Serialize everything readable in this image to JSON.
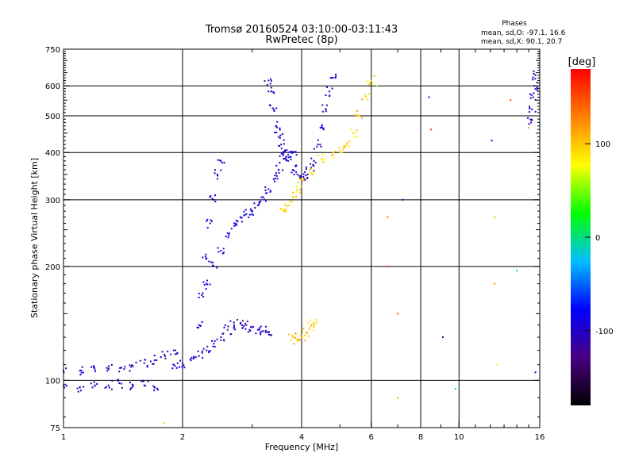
{
  "chart_data": {
    "type": "scatter",
    "title": "Tromsø 20160524 03:10:00-03:11:43",
    "subtitle": "RwPretec (8p)",
    "phase_stats": {
      "header": "Phases",
      "line1": "mean, sd,O: -97.1, 16.6",
      "line2": "mean, sd,X:  90.1, 20.7"
    },
    "xlabel": "Frequency [MHz]",
    "ylabel": "Stationary phase Virtual Height [km]",
    "x_scale": "log",
    "y_scale": "log",
    "xlim": [
      1,
      16
    ],
    "ylim": [
      75,
      750
    ],
    "x_ticks": [
      1,
      2,
      4,
      6,
      8,
      10,
      16
    ],
    "x_tick_labels": [
      "1",
      "2",
      "4",
      "6",
      "8",
      "10",
      "16"
    ],
    "y_ticks": [
      75,
      100,
      200,
      300,
      400,
      500,
      600,
      750
    ],
    "y_tick_labels": [
      "75",
      "100",
      "200",
      "300",
      "400",
      "500",
      "600",
      "750"
    ],
    "x_gridlines": [
      2,
      4,
      6,
      8,
      10
    ],
    "y_gridlines": [
      100,
      200,
      300,
      400,
      500,
      600
    ],
    "grid": true,
    "colorbar": {
      "label": "[deg]",
      "range": [
        -180,
        180
      ],
      "ticks": [
        100,
        0,
        -100
      ],
      "tick_labels": [
        "100",
        "0",
        "-100"
      ],
      "colors": [
        "#000000",
        "#4b0082",
        "#0000ff",
        "#00bfff",
        "#00ff00",
        "#ffff00",
        "#ff8000",
        "#ff0000"
      ]
    },
    "traces": [
      {
        "name": "",
        "phase": -100,
        "points": [
          [
            1.0,
            106
          ],
          [
            1.1,
            106
          ],
          [
            1.2,
            107
          ],
          [
            1.3,
            107
          ],
          [
            1.4,
            108
          ],
          [
            1.5,
            109
          ],
          [
            1.6,
            111
          ],
          [
            1.7,
            113
          ],
          [
            1.8,
            117
          ],
          [
            1.9,
            120
          ]
        ]
      },
      {
        "name": "",
        "phase": -105,
        "points": [
          [
            1.0,
            97
          ],
          [
            1.1,
            96
          ],
          [
            1.2,
            97
          ],
          [
            1.3,
            97
          ],
          [
            1.4,
            98
          ],
          [
            1.5,
            97
          ],
          [
            1.6,
            97
          ],
          [
            1.7,
            96
          ]
        ]
      },
      {
        "name": "",
        "phase": -100,
        "points": [
          [
            1.9,
            110
          ],
          [
            2.0,
            111
          ],
          [
            2.1,
            113
          ],
          [
            2.2,
            116
          ],
          [
            2.3,
            120
          ],
          [
            2.4,
            125
          ],
          [
            2.5,
            130
          ],
          [
            2.6,
            136
          ],
          [
            2.7,
            140
          ],
          [
            2.8,
            141
          ],
          [
            2.9,
            140
          ],
          [
            3.0,
            138
          ],
          [
            3.1,
            136
          ],
          [
            3.2,
            135
          ],
          [
            3.3,
            134
          ]
        ]
      },
      {
        "name": "",
        "phase": -90,
        "points": [
          [
            2.3,
            180
          ],
          [
            2.4,
            200
          ],
          [
            2.5,
            220
          ],
          [
            2.6,
            245
          ],
          [
            2.7,
            260
          ],
          [
            2.8,
            270
          ],
          [
            2.9,
            275
          ],
          [
            3.0,
            280
          ],
          [
            3.1,
            290
          ],
          [
            3.2,
            305
          ],
          [
            3.3,
            320
          ],
          [
            3.4,
            340
          ],
          [
            3.5,
            360
          ],
          [
            3.6,
            385
          ],
          [
            3.7,
            395
          ],
          [
            3.8,
            400
          ]
        ]
      },
      {
        "name": "",
        "phase": -95,
        "points": [
          [
            2.2,
            140
          ],
          [
            2.25,
            170
          ],
          [
            2.3,
            210
          ],
          [
            2.35,
            260
          ],
          [
            2.4,
            300
          ],
          [
            2.45,
            350
          ],
          [
            2.5,
            380
          ]
        ]
      },
      {
        "name": "",
        "phase": -100,
        "points": [
          [
            3.3,
            620
          ],
          [
            3.35,
            580
          ],
          [
            3.4,
            520
          ],
          [
            3.45,
            470
          ],
          [
            3.5,
            440
          ],
          [
            3.55,
            420
          ],
          [
            3.6,
            400
          ],
          [
            3.7,
            380
          ],
          [
            3.8,
            360
          ],
          [
            3.9,
            350
          ],
          [
            4.0,
            345
          ],
          [
            4.1,
            348
          ],
          [
            4.2,
            360
          ],
          [
            4.3,
            380
          ],
          [
            4.4,
            420
          ],
          [
            4.5,
            470
          ],
          [
            4.6,
            520
          ],
          [
            4.7,
            580
          ],
          [
            4.8,
            630
          ]
        ]
      },
      {
        "name": "",
        "phase": 95,
        "points": [
          [
            3.6,
            280
          ],
          [
            3.7,
            290
          ],
          [
            3.8,
            305
          ],
          [
            3.9,
            320
          ],
          [
            4.0,
            340
          ],
          [
            4.2,
            360
          ],
          [
            4.5,
            385
          ],
          [
            4.8,
            395
          ],
          [
            5.0,
            405
          ],
          [
            5.2,
            420
          ],
          [
            5.4,
            450
          ],
          [
            5.6,
            500
          ],
          [
            5.8,
            560
          ],
          [
            6.0,
            620
          ]
        ]
      },
      {
        "name": "",
        "phase": 100,
        "points": [
          [
            3.8,
            130
          ],
          [
            3.9,
            128
          ],
          [
            4.0,
            130
          ],
          [
            4.1,
            134
          ],
          [
            4.2,
            138
          ],
          [
            4.3,
            142
          ]
        ]
      },
      {
        "name": "",
        "phase": -100,
        "points": [
          [
            15.2,
            480
          ],
          [
            15.3,
            520
          ],
          [
            15.4,
            560
          ],
          [
            15.5,
            600
          ],
          [
            15.6,
            640
          ]
        ]
      }
    ],
    "isolated_points": [
      {
        "x": 1.8,
        "y": 77,
        "phase": 100
      },
      {
        "x": 6.2,
        "y": 600,
        "phase": 60
      },
      {
        "x": 6.6,
        "y": 270,
        "phase": 130
      },
      {
        "x": 6.6,
        "y": 200,
        "phase": 160
      },
      {
        "x": 7.0,
        "y": 150,
        "phase": 150
      },
      {
        "x": 7.0,
        "y": 90,
        "phase": 110
      },
      {
        "x": 7.2,
        "y": 300,
        "phase": -110
      },
      {
        "x": 8.4,
        "y": 560,
        "phase": -110
      },
      {
        "x": 8.5,
        "y": 460,
        "phase": 170
      },
      {
        "x": 9.1,
        "y": 130,
        "phase": -120
      },
      {
        "x": 9.8,
        "y": 95,
        "phase": -20
      },
      {
        "x": 12.1,
        "y": 430,
        "phase": -100
      },
      {
        "x": 12.3,
        "y": 270,
        "phase": 110
      },
      {
        "x": 12.3,
        "y": 180,
        "phase": 120
      },
      {
        "x": 12.5,
        "y": 110,
        "phase": 90
      },
      {
        "x": 13.5,
        "y": 550,
        "phase": 150
      },
      {
        "x": 14.0,
        "y": 195,
        "phase": -20
      },
      {
        "x": 15.0,
        "y": 465,
        "phase": 120
      },
      {
        "x": 15.6,
        "y": 105,
        "phase": -110
      }
    ]
  }
}
